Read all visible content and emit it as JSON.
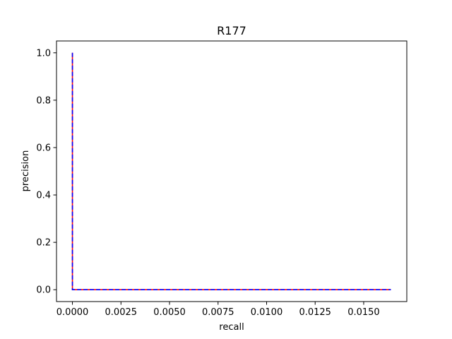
{
  "chart_data": {
    "type": "line",
    "title": "R177",
    "xlabel": "recall",
    "ylabel": "precision",
    "xlim": [
      -0.00082,
      0.01722
    ],
    "ylim": [
      -0.05,
      1.05
    ],
    "xticks": [
      0.0,
      0.0025,
      0.005,
      0.0075,
      0.01,
      0.0125,
      0.015
    ],
    "xtick_labels": [
      "0.0000",
      "0.0025",
      "0.0050",
      "0.0075",
      "0.0100",
      "0.0125",
      "0.0150"
    ],
    "yticks": [
      0.0,
      0.2,
      0.4,
      0.6,
      0.8,
      1.0
    ],
    "ytick_labels": [
      "0.0",
      "0.2",
      "0.4",
      "0.6",
      "0.8",
      "1.0"
    ],
    "grid": false,
    "series": [
      {
        "color": "#ff0000",
        "linestyle": "solid",
        "x": [
          0.0,
          0.0,
          0.0164
        ],
        "y": [
          1.0,
          0.0,
          0.0
        ]
      },
      {
        "color": "#0000ff",
        "linestyle": "dashed",
        "x": [
          0.0,
          0.0,
          0.0164
        ],
        "y": [
          1.0,
          0.0,
          0.0
        ]
      }
    ]
  }
}
